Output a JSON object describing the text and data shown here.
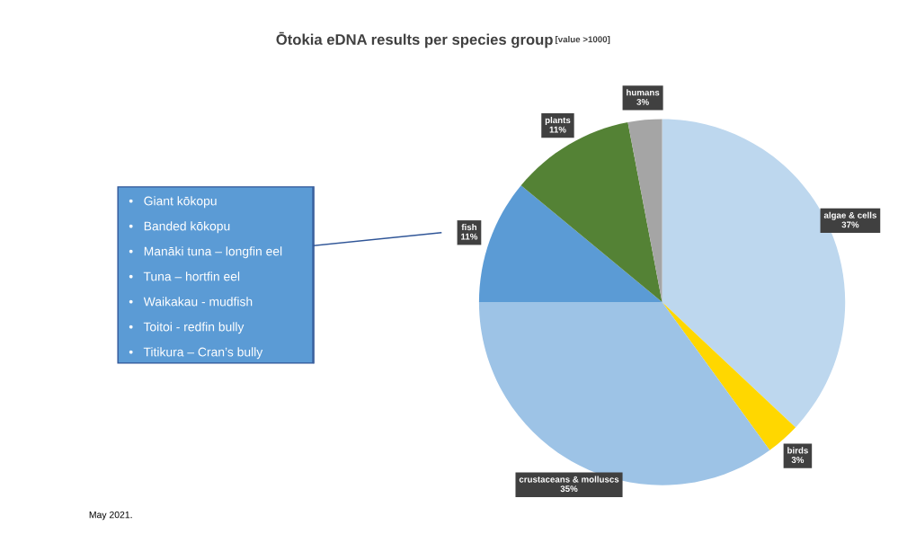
{
  "chart_data": {
    "type": "pie",
    "title": "Ōtokia eDNA results per species group",
    "subtitle": "[value >1000]",
    "categories": [
      "algae & cells",
      "birds",
      "crustaceans & molluscs",
      "fish",
      "plants",
      "humans"
    ],
    "values": [
      37,
      3,
      35,
      11,
      11,
      3
    ],
    "value_labels": [
      "37%",
      "3%",
      "35%",
      "11%",
      "11%",
      "3%"
    ],
    "colors": [
      "#bdd7ee",
      "#ffd700",
      "#9dc3e6",
      "#5b9bd5",
      "#548235",
      "#a5a5a5"
    ],
    "annotations": [
      "•   Giant kōkopu",
      "•   Banded kōkopu",
      "•   Manāki tuna – longfin eel",
      "•   Tuna – hortfin eel",
      "•   Waikakau - mudfish",
      "•   Toitoi - redfin bully",
      "•   Titikura – Cran’s bully",
      "May 2021."
    ]
  }
}
